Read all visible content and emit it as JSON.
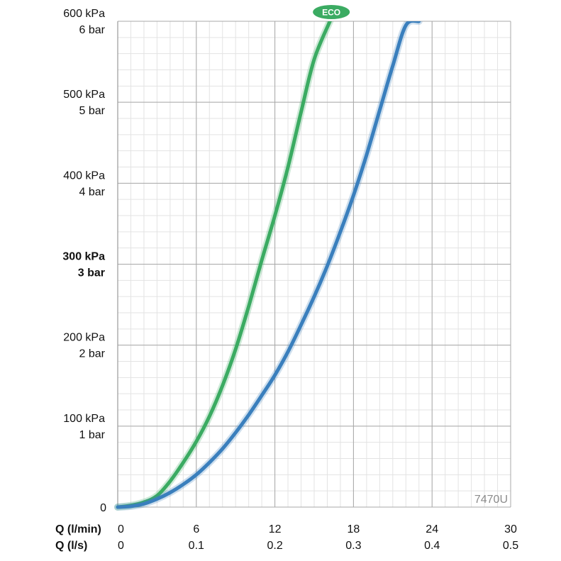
{
  "chart_data": {
    "type": "line",
    "xlabel": "Q (l/min)",
    "xlabel2": "Q (l/s)",
    "x_ticks": [
      0,
      6,
      12,
      18,
      24,
      30
    ],
    "x_tick_labels": [
      "0",
      "6",
      "12",
      "18",
      "24",
      "30"
    ],
    "x2_tick_labels": [
      "0",
      "0.1",
      "0.2",
      "0.3",
      "0.4",
      "0.5"
    ],
    "xlim": [
      0,
      30
    ],
    "ylim": [
      0,
      600
    ],
    "y_ticks": [
      {
        "value": 0,
        "kpa": "0",
        "bar": "",
        "bold": false
      },
      {
        "value": 100,
        "kpa": "100 kPa",
        "bar": "1 bar",
        "bold": false
      },
      {
        "value": 200,
        "kpa": "200 kPa",
        "bar": "2 bar",
        "bold": false
      },
      {
        "value": 300,
        "kpa": "300 kPa",
        "bar": "3 bar",
        "bold": true
      },
      {
        "value": 400,
        "kpa": "400 kPa",
        "bar": "4 bar",
        "bold": false
      },
      {
        "value": 500,
        "kpa": "500 kPa",
        "bar": "5 bar",
        "bold": false
      },
      {
        "value": 600,
        "kpa": "600 kPa",
        "bar": "6 bar",
        "bold": false
      }
    ],
    "grid": true,
    "series": [
      {
        "label": "ECO",
        "color": "#3bab62",
        "x": [
          0,
          1,
          2,
          3,
          4,
          5,
          6,
          7,
          8,
          9,
          10,
          11,
          12,
          13,
          14,
          15,
          16.2
        ],
        "y": [
          0,
          2,
          6,
          14,
          32,
          55,
          81,
          112,
          150,
          195,
          248,
          305,
          360,
          420,
          488,
          553,
          600
        ]
      },
      {
        "label": "",
        "color": "#3a7fbd",
        "x": [
          0,
          1,
          2,
          3,
          4,
          5,
          6,
          7,
          8,
          9,
          10,
          11,
          12,
          13,
          14,
          15,
          16,
          17,
          18,
          19,
          20,
          21,
          22,
          23
        ],
        "y": [
          0,
          1,
          4,
          10,
          18,
          28,
          40,
          55,
          72,
          92,
          114,
          138,
          163,
          192,
          225,
          260,
          298,
          340,
          385,
          435,
          490,
          545,
          595,
          625
        ]
      }
    ],
    "watermark": "7470U"
  }
}
